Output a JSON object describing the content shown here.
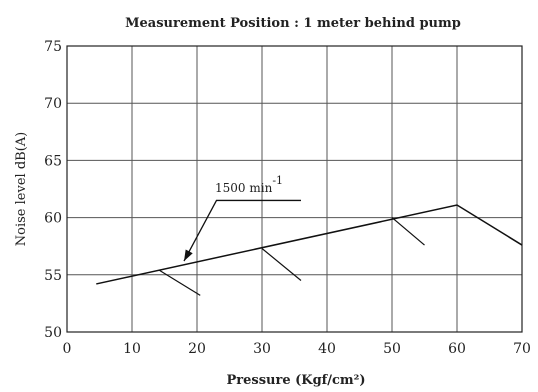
{
  "chart_data": {
    "type": "line",
    "title": "Measurement Position : 1 meter behind pump",
    "xlabel": "Pressure  (Kgf/cm²)",
    "ylabel": "Noise level dB(A)",
    "xlim": [
      0,
      70
    ],
    "ylim": [
      50,
      75
    ],
    "xticks": [
      "0",
      "10",
      "20",
      "30",
      "40",
      "50",
      "60",
      "70"
    ],
    "yticks": [
      "50",
      "55",
      "60",
      "65",
      "70",
      "75"
    ],
    "grid": true,
    "series": [
      {
        "name": "1500 min-1",
        "x": [
          4.5,
          60,
          70
        ],
        "y": [
          54.2,
          61.1,
          57.6
        ]
      }
    ],
    "branches": [
      {
        "x": [
          14.2,
          20.5
        ],
        "y": [
          55.4,
          53.2
        ]
      },
      {
        "x": [
          30,
          36
        ],
        "y": [
          57.3,
          54.5
        ]
      },
      {
        "x": [
          50,
          55
        ],
        "y": [
          60.0,
          57.6
        ]
      }
    ],
    "annotation": {
      "text_base": "1500 min",
      "text_sup": "-1",
      "leader_x": [
        36,
        23,
        18
      ],
      "leader_y": [
        61.5,
        61.5,
        56.2
      ]
    }
  }
}
